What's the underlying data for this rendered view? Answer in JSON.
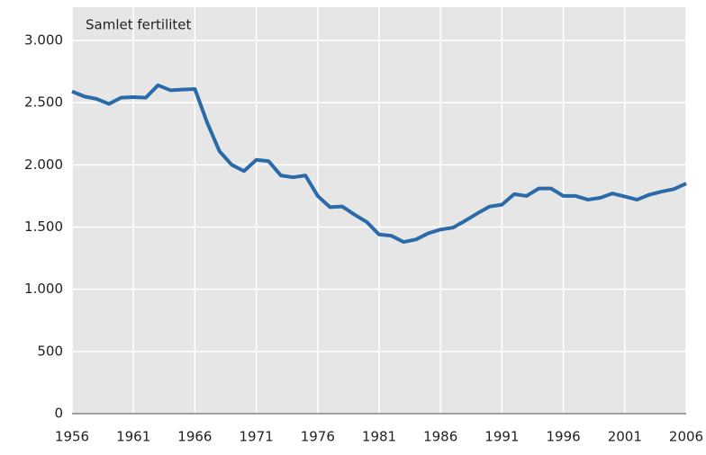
{
  "chart_data": {
    "type": "line",
    "y_label": "Samlet fertilitet",
    "x": [
      1956,
      1957,
      1958,
      1959,
      1960,
      1961,
      1962,
      1963,
      1964,
      1965,
      1966,
      1967,
      1968,
      1969,
      1970,
      1971,
      1972,
      1973,
      1974,
      1975,
      1976,
      1977,
      1978,
      1979,
      1980,
      1981,
      1982,
      1983,
      1984,
      1985,
      1986,
      1987,
      1988,
      1989,
      1990,
      1991,
      1992,
      1993,
      1994,
      1995,
      1996,
      1997,
      1998,
      1999,
      2000,
      2001,
      2002,
      2003,
      2004,
      2005,
      2006
    ],
    "values": [
      2590,
      2550,
      2530,
      2490,
      2540,
      2545,
      2540,
      2640,
      2600,
      2605,
      2610,
      2340,
      2110,
      2000,
      1950,
      2040,
      2030,
      1915,
      1900,
      1915,
      1750,
      1660,
      1665,
      1600,
      1540,
      1440,
      1430,
      1380,
      1400,
      1450,
      1480,
      1495,
      1550,
      1610,
      1665,
      1680,
      1765,
      1750,
      1810,
      1810,
      1750,
      1750,
      1720,
      1735,
      1770,
      1745,
      1720,
      1760,
      1785,
      1805,
      1850
    ],
    "color": "#2a6aa8",
    "xlim": [
      1956,
      2006
    ],
    "xticks": [
      1956,
      1961,
      1966,
      1971,
      1976,
      1981,
      1986,
      1991,
      1996,
      2001,
      2006
    ],
    "ylim": [
      0,
      3000
    ],
    "yticks": [
      0,
      500,
      {
        "value": 1000,
        "label": "1.000"
      },
      {
        "value": 1500,
        "label": "1.500"
      },
      {
        "value": 2000,
        "label": "2.000"
      },
      {
        "value": 2500,
        "label": "2.500"
      },
      {
        "value": 3000,
        "label": "3.000"
      }
    ],
    "grid": true
  }
}
